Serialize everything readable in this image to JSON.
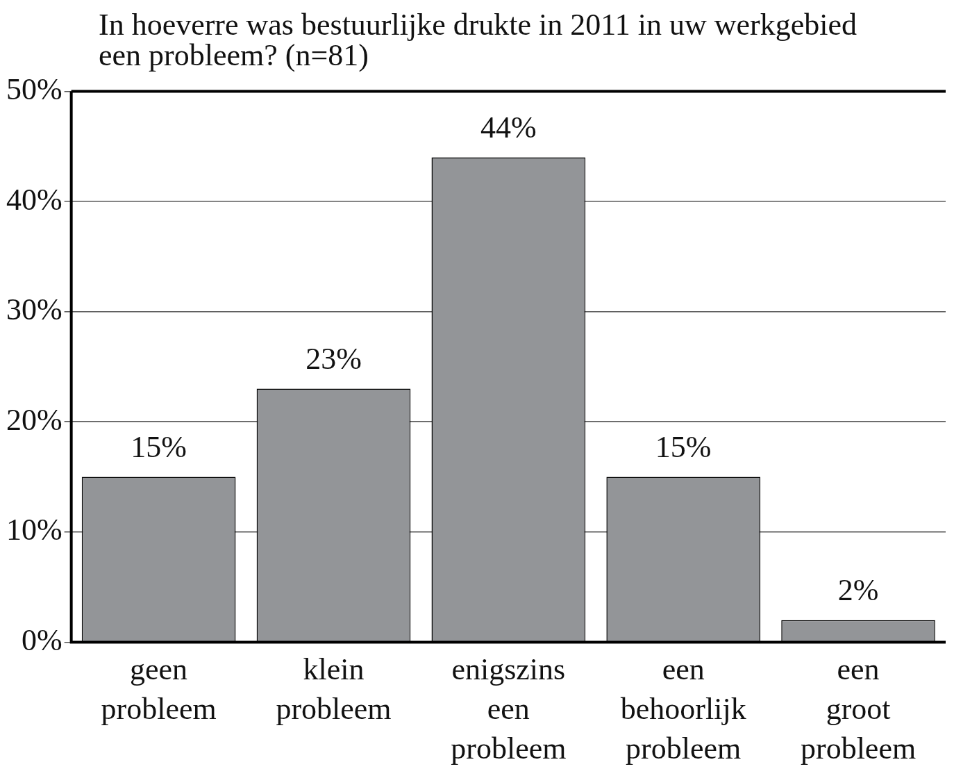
{
  "chart_data": {
    "type": "bar",
    "title": "In hoeverre was bestuurlijke drukte in 2011 in uw werkgebied een probleem? (n=81)",
    "categories": [
      "geen probleem",
      "klein probleem",
      "enigszins een probleem",
      "een behoorlijk probleem",
      "een groot probleem"
    ],
    "values": [
      15,
      23,
      44,
      15,
      2
    ],
    "value_labels": [
      "15%",
      "23%",
      "44%",
      "15%",
      "2%"
    ],
    "color": "#939598",
    "ylim": [
      0,
      50
    ],
    "yticks": [
      {
        "value": 0,
        "label": "0%"
      },
      {
        "value": 10,
        "label": "10%"
      },
      {
        "value": 20,
        "label": "20%"
      },
      {
        "value": 30,
        "label": "30%"
      },
      {
        "value": 40,
        "label": "40%"
      },
      {
        "value": 50,
        "label": "50%"
      }
    ],
    "grid": "y",
    "legend": false
  }
}
